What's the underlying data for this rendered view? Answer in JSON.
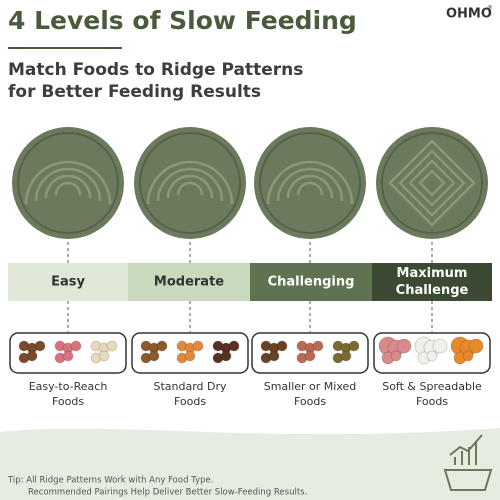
{
  "header": {
    "title": "4 Levels of Slow Feeding",
    "brand": "OHMO",
    "brand_mark": "®",
    "subtitle": [
      "Match Foods to Ridge Patterns",
      "for Better Feeding Results"
    ]
  },
  "levels": [
    {
      "lines": [
        "Easy"
      ]
    },
    {
      "lines": [
        "Moderate"
      ]
    },
    {
      "lines": [
        "Challenging"
      ]
    },
    {
      "lines": [
        "Maximum",
        "Challenge"
      ]
    }
  ],
  "foods": [
    {
      "lines": [
        "Easy-to-Reach",
        "Foods"
      ]
    },
    {
      "lines": [
        "Standard Dry",
        "Foods"
      ]
    },
    {
      "lines": [
        "Smaller or Mixed",
        "Foods"
      ]
    },
    {
      "lines": [
        "Soft & Spreadable",
        "Foods"
      ]
    }
  ],
  "tip": [
    "Tip: All Ridge Patterns Work with Any Food Type.",
    "Recommended Pairings Help Deliver Better Slow-Feeding Results."
  ]
}
